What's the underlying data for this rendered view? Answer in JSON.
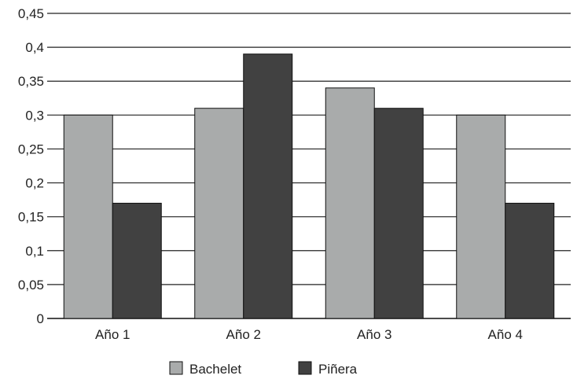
{
  "chart_data": {
    "type": "bar",
    "title": "",
    "xlabel": "",
    "ylabel": "",
    "categories": [
      "Año 1",
      "Año 2",
      "Año 3",
      "Año 4"
    ],
    "series": [
      {
        "name": "Bachelet",
        "color": "#a9abab",
        "values": [
          0.3,
          0.31,
          0.34,
          0.3
        ]
      },
      {
        "name": "Piñera",
        "color": "#414141",
        "values": [
          0.17,
          0.39,
          0.31,
          0.17
        ]
      }
    ],
    "ylim": [
      0,
      0.45
    ],
    "yticks": [
      {
        "value": 0,
        "label": "0"
      },
      {
        "value": 0.05,
        "label": "0,05"
      },
      {
        "value": 0.1,
        "label": "0,1"
      },
      {
        "value": 0.15,
        "label": "0,15"
      },
      {
        "value": 0.2,
        "label": "0,2"
      },
      {
        "value": 0.25,
        "label": "0,25"
      },
      {
        "value": 0.3,
        "label": "0,3"
      },
      {
        "value": 0.35,
        "label": "0,35"
      },
      {
        "value": 0.4,
        "label": "0,4"
      },
      {
        "value": 0.45,
        "label": "0,45"
      }
    ],
    "grid": true,
    "legend_position": "bottom-center"
  }
}
